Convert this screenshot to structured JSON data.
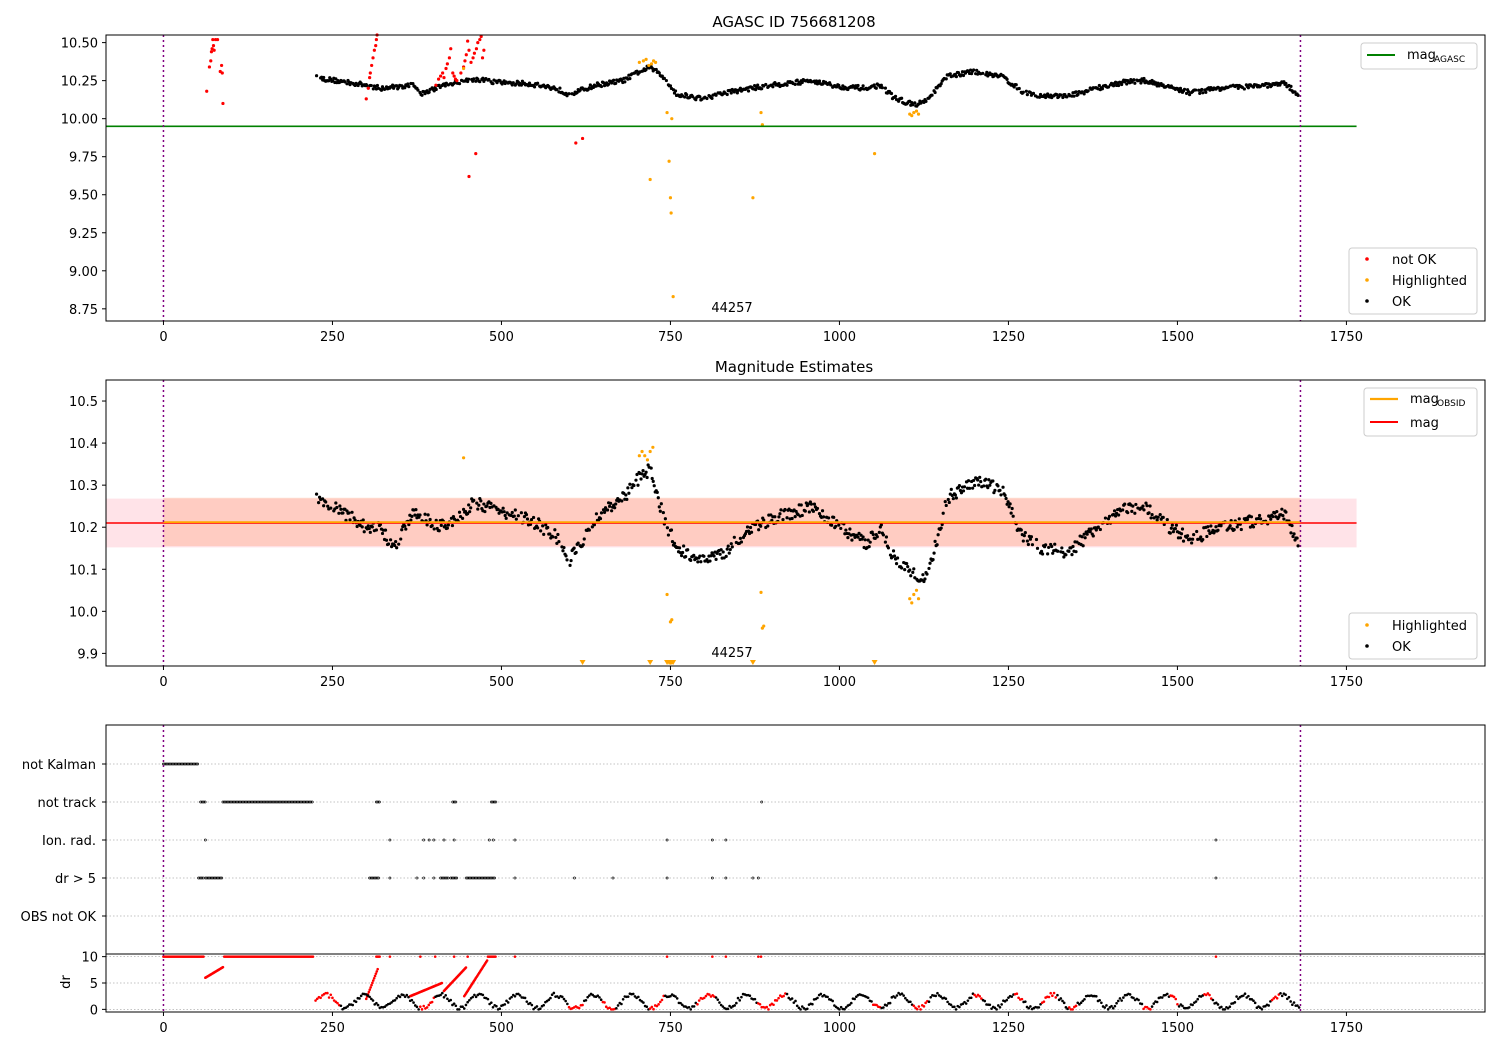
{
  "figure": {
    "colors": {
      "ok": "#000000",
      "not_ok": "#ff0000",
      "highlighted": "#ffa500",
      "mag_agasc": "#008000",
      "mag": "#ff0000",
      "mag_obsid": "#ffa500",
      "band_mag": "#ffc0cb",
      "band_obsid": "#ffa07a",
      "obsid_boundary": "#800080"
    },
    "obsid_label": "44257"
  },
  "chart_data": [
    {
      "type": "scatter",
      "title": "AGASC ID 756681208",
      "xlabel": "",
      "ylabel": "",
      "xlim": [
        -85,
        1955
      ],
      "ylim": [
        8.67,
        10.55
      ],
      "x_ticks": [
        "0",
        "250",
        "500",
        "750",
        "1000",
        "1250",
        "1500",
        "1750"
      ],
      "y_ticks": [
        "8.75",
        "9.00",
        "9.25",
        "9.50",
        "9.75",
        "10.00",
        "10.25",
        "10.50"
      ],
      "obsid_boundaries": [
        0,
        1682
      ],
      "mag_agasc": 9.95,
      "mag_agasc_xrange": [
        -85,
        1765
      ],
      "legend_lines": [
        {
          "name": "mag_AGASC",
          "label_main": "mag",
          "label_sub": "AGASC",
          "color": "#008000"
        }
      ],
      "legend_points": [
        {
          "name": "not OK",
          "color": "#ff0000"
        },
        {
          "name": "Highlighted",
          "color": "#ffa500"
        },
        {
          "name": "OK",
          "color": "#000000"
        }
      ],
      "series": [
        {
          "name": "not OK",
          "color": "#ff0000",
          "x": [
            64,
            68,
            70,
            71,
            72,
            73,
            74,
            75,
            77,
            80,
            84,
            86,
            87,
            88,
            300,
            303,
            305,
            306,
            308,
            310,
            312,
            314,
            315,
            316,
            403,
            407,
            410,
            413,
            415,
            418,
            420,
            423,
            425,
            428,
            430,
            432,
            434,
            440,
            444,
            446,
            448,
            450,
            452,
            455,
            458,
            460,
            463,
            465,
            468,
            470,
            472,
            474,
            452,
            462,
            610,
            620
          ],
          "y": [
            10.18,
            10.34,
            10.38,
            10.44,
            10.46,
            10.52,
            10.48,
            10.45,
            10.52,
            10.52,
            10.31,
            10.35,
            10.3,
            10.1,
            10.13,
            10.2,
            10.27,
            10.3,
            10.35,
            10.4,
            10.45,
            10.48,
            10.52,
            10.55,
            10.22,
            10.26,
            10.28,
            10.3,
            10.27,
            10.33,
            10.36,
            10.4,
            10.46,
            10.3,
            10.28,
            10.26,
            10.25,
            10.3,
            10.34,
            10.38,
            10.42,
            10.51,
            10.45,
            10.37,
            10.4,
            10.43,
            10.46,
            10.5,
            10.52,
            10.54,
            10.4,
            10.45,
            9.62,
            9.77,
            9.84,
            9.87
          ]
        },
        {
          "name": "Highlighted",
          "color": "#ffa500",
          "x": [
            444,
            704,
            710,
            714,
            718,
            722,
            725,
            728,
            745,
            748,
            750,
            751,
            752,
            754,
            720,
            872,
            884,
            886,
            1052,
            1104,
            1107,
            1110,
            1114,
            1117
          ],
          "y": [
            10.33,
            10.37,
            10.38,
            10.39,
            10.35,
            10.36,
            10.38,
            10.37,
            10.04,
            9.72,
            9.48,
            9.38,
            10.0,
            8.83,
            9.6,
            9.48,
            10.04,
            9.96,
            9.77,
            10.03,
            10.02,
            10.04,
            10.05,
            10.03
          ]
        }
      ],
      "ok_series": {
        "name": "OK",
        "color": "#000000",
        "x_range": [
          225,
          1680
        ],
        "step": 1.5,
        "knots": [
          [
            225,
            10.27
          ],
          [
            300,
            10.22
          ],
          [
            320,
            10.2
          ],
          [
            370,
            10.22
          ],
          [
            380,
            10.16
          ],
          [
            420,
            10.23
          ],
          [
            460,
            10.26
          ],
          [
            490,
            10.24
          ],
          [
            540,
            10.23
          ],
          [
            580,
            10.2
          ],
          [
            600,
            10.16
          ],
          [
            640,
            10.22
          ],
          [
            680,
            10.25
          ],
          [
            700,
            10.3
          ],
          [
            720,
            10.34
          ],
          [
            740,
            10.27
          ],
          [
            760,
            10.16
          ],
          [
            800,
            10.13
          ],
          [
            830,
            10.17
          ],
          [
            870,
            10.2
          ],
          [
            900,
            10.22
          ],
          [
            940,
            10.24
          ],
          [
            960,
            10.25
          ],
          [
            1000,
            10.21
          ],
          [
            1040,
            10.2
          ],
          [
            1060,
            10.22
          ],
          [
            1080,
            10.14
          ],
          [
            1110,
            10.09
          ],
          [
            1130,
            10.12
          ],
          [
            1160,
            10.28
          ],
          [
            1200,
            10.31
          ],
          [
            1240,
            10.28
          ],
          [
            1270,
            10.18
          ],
          [
            1300,
            10.15
          ],
          [
            1340,
            10.15
          ],
          [
            1380,
            10.2
          ],
          [
            1420,
            10.24
          ],
          [
            1450,
            10.25
          ],
          [
            1480,
            10.22
          ],
          [
            1520,
            10.17
          ],
          [
            1560,
            10.2
          ],
          [
            1600,
            10.21
          ],
          [
            1630,
            10.22
          ],
          [
            1660,
            10.23
          ],
          [
            1680,
            10.15
          ]
        ],
        "noise": 0.03
      }
    },
    {
      "type": "scatter",
      "title": "Magnitude Estimates",
      "xlabel": "",
      "ylabel": "",
      "xlim": [
        -85,
        1955
      ],
      "ylim": [
        9.87,
        10.55
      ],
      "x_ticks": [
        "0",
        "250",
        "500",
        "750",
        "1000",
        "1250",
        "1500",
        "1750"
      ],
      "y_ticks": [
        "9.9",
        "10.0",
        "10.1",
        "10.2",
        "10.3",
        "10.4",
        "10.5"
      ],
      "obsid_boundaries": [
        0,
        1682
      ],
      "mag": 10.21,
      "mag_band": [
        10.152,
        10.268
      ],
      "mag_band_xrange": [
        -85,
        1765
      ],
      "mag_obsid": 10.212,
      "mag_obsid_band": [
        10.155,
        10.27
      ],
      "mag_obsid_xrange": [
        0,
        1682
      ],
      "legend_lines": [
        {
          "name": "mag_OBSID",
          "label_main": "mag",
          "label_sub": "OBSID",
          "color": "#ffa500"
        },
        {
          "name": "mag",
          "label_main": "mag",
          "label_sub": "",
          "color": "#ff0000"
        }
      ],
      "legend_points": [
        {
          "name": "Highlighted",
          "color": "#ffa500"
        },
        {
          "name": "OK",
          "color": "#000000"
        }
      ],
      "series": [
        {
          "name": "Highlighted",
          "color": "#ffa500",
          "x": [
            444,
            704,
            708,
            712,
            716,
            720,
            724,
            745,
            750,
            752,
            884,
            886,
            888,
            1104,
            1107,
            1110,
            1114,
            1117
          ],
          "y": [
            10.365,
            10.37,
            10.38,
            10.37,
            10.36,
            10.38,
            10.39,
            10.04,
            9.975,
            9.98,
            10.045,
            9.96,
            9.965,
            10.03,
            10.02,
            10.04,
            10.05,
            10.03
          ]
        },
        {
          "name": "Highlighted (below axis)",
          "color": "#ffa500",
          "marker": "triangle-down",
          "x": [
            620,
            720,
            745,
            748,
            750,
            752,
            754,
            872,
            1052
          ],
          "y": [
            9.878,
            9.878,
            9.878,
            9.878,
            9.878,
            9.878,
            9.878,
            9.878,
            9.878
          ]
        }
      ],
      "ok_series": {
        "name": "OK",
        "color": "#000000",
        "x_range": [
          225,
          1680
        ],
        "step": 1.5,
        "knots": [
          [
            225,
            10.27
          ],
          [
            260,
            10.24
          ],
          [
            300,
            10.2
          ],
          [
            320,
            10.2
          ],
          [
            340,
            10.15
          ],
          [
            370,
            10.24
          ],
          [
            400,
            10.21
          ],
          [
            420,
            10.2
          ],
          [
            460,
            10.26
          ],
          [
            490,
            10.24
          ],
          [
            540,
            10.22
          ],
          [
            580,
            10.18
          ],
          [
            600,
            10.12
          ],
          [
            640,
            10.22
          ],
          [
            680,
            10.27
          ],
          [
            700,
            10.31
          ],
          [
            720,
            10.34
          ],
          [
            740,
            10.22
          ],
          [
            760,
            10.15
          ],
          [
            800,
            10.12
          ],
          [
            830,
            10.14
          ],
          [
            870,
            10.2
          ],
          [
            900,
            10.22
          ],
          [
            940,
            10.24
          ],
          [
            960,
            10.25
          ],
          [
            1000,
            10.2
          ],
          [
            1040,
            10.16
          ],
          [
            1060,
            10.2
          ],
          [
            1080,
            10.13
          ],
          [
            1110,
            10.09
          ],
          [
            1130,
            10.08
          ],
          [
            1160,
            10.27
          ],
          [
            1200,
            10.31
          ],
          [
            1240,
            10.29
          ],
          [
            1270,
            10.18
          ],
          [
            1300,
            10.15
          ],
          [
            1340,
            10.14
          ],
          [
            1380,
            10.2
          ],
          [
            1420,
            10.24
          ],
          [
            1450,
            10.25
          ],
          [
            1480,
            10.21
          ],
          [
            1520,
            10.17
          ],
          [
            1560,
            10.2
          ],
          [
            1600,
            10.21
          ],
          [
            1630,
            10.22
          ],
          [
            1660,
            10.23
          ],
          [
            1680,
            10.15
          ]
        ],
        "noise": 0.03
      }
    },
    {
      "type": "scatter",
      "title": "",
      "xlabel": "",
      "ylabel": "",
      "xlim": [
        -85,
        1955
      ],
      "x_ticks": [
        "0",
        "250",
        "500",
        "750",
        "1000",
        "1250",
        "1500",
        "1750"
      ],
      "obsid_boundaries": [
        0,
        1682
      ],
      "flag_rows": [
        "not Kalman",
        "not track",
        "Ion. rad.",
        "dr > 5",
        "OBS not OK"
      ],
      "flags": {
        "not Kalman": {
          "x_runs": [
            [
              0,
              52
            ]
          ]
        },
        "not track": {
          "x_runs": [
            [
              55,
              62
            ],
            [
              88,
              222
            ],
            [
              315,
              320
            ],
            [
              428,
              434
            ],
            [
              485,
              492
            ]
          ],
          "x_points": [
            885
          ]
        },
        "Ion. rad.": {
          "x_points": [
            62,
            335,
            385,
            393,
            400,
            415,
            430,
            482,
            488,
            520,
            745,
            812,
            832,
            1557
          ]
        },
        "dr > 5": {
          "x_runs": [
            [
              52,
              60
            ],
            [
              62,
              88
            ],
            [
              305,
              320
            ],
            [
              410,
              422
            ],
            [
              425,
              435
            ],
            [
              448,
              490
            ]
          ],
          "x_points": [
            335,
            375,
            385,
            400,
            520,
            608,
            665,
            745,
            812,
            832,
            872,
            880,
            1557
          ]
        },
        "OBS not OK": {}
      }
    },
    {
      "type": "scatter",
      "title": "",
      "xlabel": "",
      "ylabel": "dr",
      "xlim": [
        -85,
        1955
      ],
      "ylim": [
        -0.5,
        10.5
      ],
      "x_ticks": [
        "0",
        "250",
        "500",
        "750",
        "1000",
        "1250",
        "1500",
        "1750"
      ],
      "y_ticks": [
        "0",
        "5",
        "10"
      ],
      "obsid_boundaries": [
        0,
        1682
      ],
      "saturated_red": {
        "y": 10,
        "x_runs": [
          [
            0,
            60
          ],
          [
            90,
            222
          ],
          [
            315,
            320
          ],
          [
            480,
            492
          ]
        ],
        "x_points": [
          335,
          380,
          402,
          430,
          450,
          520,
          745,
          812,
          832,
          880,
          884,
          1557
        ]
      },
      "ramps": [
        {
          "x": [
            62,
            88
          ],
          "y": [
            6,
            8
          ]
        },
        {
          "x": [
            300,
            318
          ],
          "y": [
            2,
            8
          ]
        },
        {
          "x": [
            365,
            412
          ],
          "y": [
            2.5,
            5
          ]
        },
        {
          "x": [
            415,
            448
          ],
          "y": [
            3.5,
            8
          ]
        },
        {
          "x": [
            445,
            480
          ],
          "y": [
            2.5,
            9.5
          ]
        }
      ],
      "not_ok_segments": [
        [
          225,
          260
        ],
        [
          380,
          402
        ],
        [
          600,
          620
        ],
        [
          650,
          668
        ],
        [
          720,
          740
        ],
        [
          790,
          815
        ],
        [
          880,
          920
        ],
        [
          1050,
          1060
        ],
        [
          1110,
          1130
        ],
        [
          1200,
          1210
        ],
        [
          1260,
          1270
        ],
        [
          1300,
          1320
        ],
        [
          1340,
          1350
        ],
        [
          1450,
          1460
        ],
        [
          1490,
          1500
        ],
        [
          1540,
          1550
        ],
        [
          1640,
          1650
        ]
      ],
      "dr_noise": {
        "x_range": [
          225,
          1680
        ],
        "step": 2.5,
        "base": 1.5,
        "amp": 1.3
      }
    }
  ]
}
